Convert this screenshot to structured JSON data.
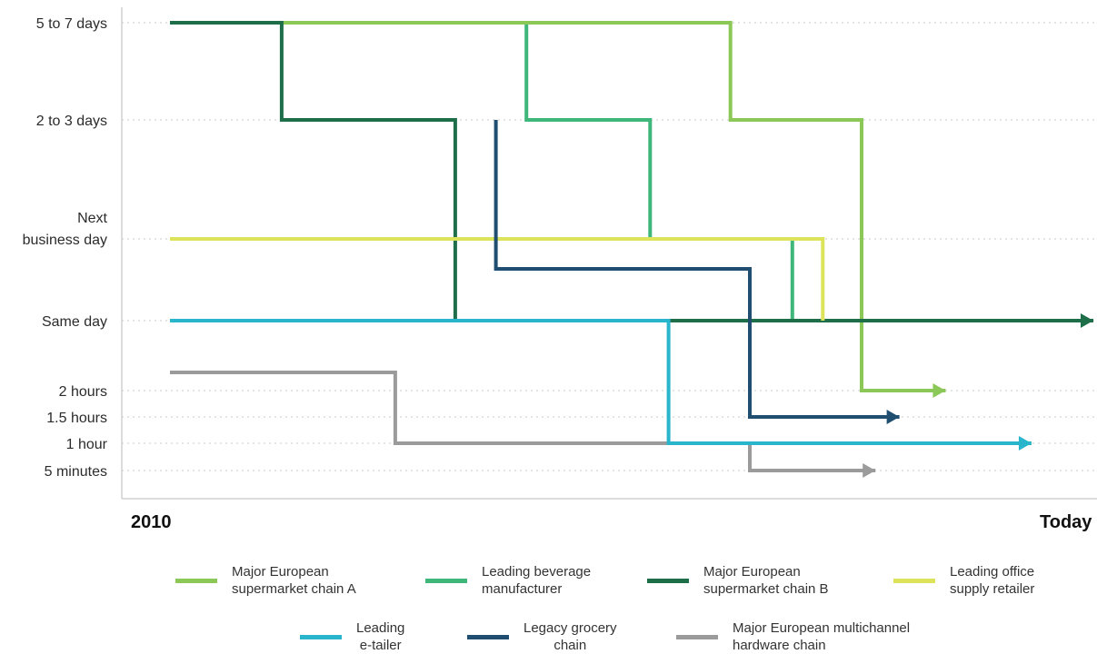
{
  "chart_data": {
    "type": "line",
    "step": true,
    "x_axis": {
      "tick_labels": [
        "2010",
        "Today"
      ]
    },
    "y_axis": {
      "categories": [
        "5 minutes",
        "1 hour",
        "1.5 hours",
        "2 hours",
        "Same day",
        "Next\nbusiness day",
        "2 to 3 days",
        "5 to 7 days"
      ]
    },
    "grid": "horizontal dotted",
    "legend_position": "bottom",
    "series": [
      {
        "name": "Major European\nsupermarket chain A",
        "color": "#8cc857",
        "steps": [
          [
            0,
            "5 to 7 days"
          ],
          [
            0.607,
            "2 to 3 days"
          ],
          [
            0.749,
            "2 hours"
          ],
          [
            0.84,
            "2 hours"
          ]
        ]
      },
      {
        "name": "Leading beverage\nmanufacturer",
        "color": "#3fb67a",
        "steps": [
          [
            0.386,
            "5 to 7 days"
          ],
          [
            0.386,
            "2 to 3 days"
          ],
          [
            0.52,
            "Next\nbusiness day"
          ],
          [
            0.674,
            "Same day"
          ]
        ]
      },
      {
        "name": "Major European\nsupermarket chain B",
        "color": "#1f6e4a",
        "steps": [
          [
            0,
            "5 to 7 days"
          ],
          [
            0.121,
            "2 to 3 days"
          ],
          [
            0.309,
            "Same day"
          ],
          [
            1.0,
            "Same day"
          ]
        ]
      },
      {
        "name": "Leading office\nsupply retailer",
        "color": "#dde35a",
        "steps": [
          [
            0,
            "Next\nbusiness day"
          ],
          [
            0.707,
            "Same day"
          ]
        ]
      },
      {
        "name": "Leading\ne-tailer",
        "color": "#29b5cc",
        "steps": [
          [
            0,
            "Same day"
          ],
          [
            0.54,
            "1 hour"
          ],
          [
            0.933,
            "1 hour"
          ]
        ]
      },
      {
        "name": "Legacy grocery\nchain",
        "color": "#1f4e70",
        "steps": [
          [
            0.353,
            "2 to 3 days"
          ],
          [
            0.353,
            "between Next business day and Same day"
          ],
          [
            0.628,
            "1.5 hours"
          ],
          [
            0.79,
            "1.5 hours"
          ]
        ]
      },
      {
        "name": "Major European multichannel\nhardware chain",
        "color": "#9b9b9b",
        "steps": [
          [
            0,
            "between Same day and 2 hours"
          ],
          [
            0.244,
            "1 hour"
          ],
          [
            0.628,
            "5 minutes"
          ],
          [
            0.764,
            "5 minutes"
          ]
        ]
      }
    ]
  }
}
